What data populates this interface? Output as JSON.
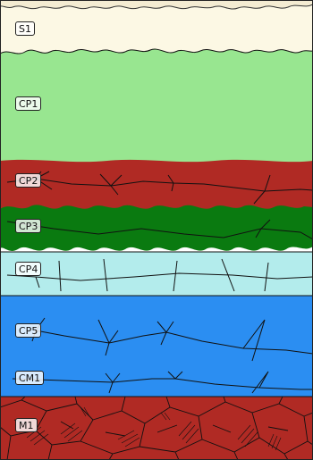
{
  "diagram": {
    "layers": [
      {
        "id": "s1",
        "label": "S1",
        "fill": "#fcf8e4"
      },
      {
        "id": "cp1",
        "label": "CP1",
        "fill": "#98e690"
      },
      {
        "id": "cp2",
        "label": "CP2",
        "fill": "#b02a24"
      },
      {
        "id": "cp3",
        "label": "CP3",
        "fill": "#0a7a10"
      },
      {
        "id": "cp4",
        "label": "CP4",
        "fill": "#b3ecec"
      },
      {
        "id": "cp5",
        "label": "CP5",
        "fill": "#2b8ef2"
      },
      {
        "id": "cm1",
        "label": "CM1",
        "fill": "#2b8ef2"
      },
      {
        "id": "m1",
        "label": "M1",
        "fill": "#b02a24"
      }
    ],
    "line_color": "#111111",
    "frame_color": "#222222"
  }
}
